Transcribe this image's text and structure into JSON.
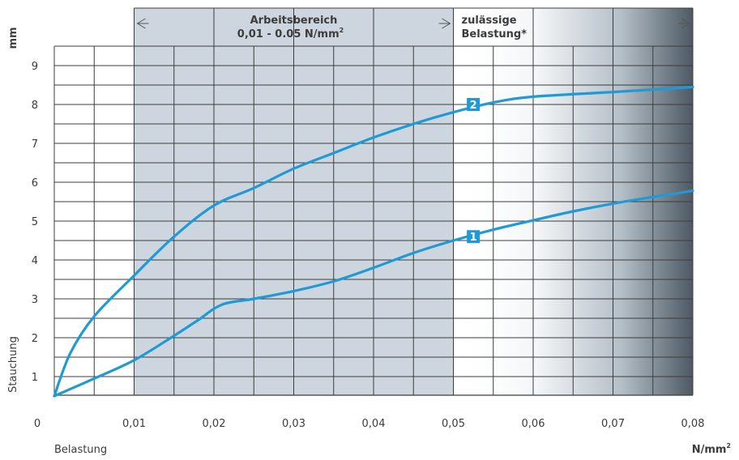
{
  "chart_data": {
    "type": "line",
    "y_unit": "mm",
    "ylabel": "Stauchung",
    "xlabel": "Belastung",
    "x_unit": "N/mm",
    "x_unit_sup": "2",
    "origin_label": "0",
    "xlim": [
      0.0,
      0.08
    ],
    "ylim": [
      0.5,
      9.5
    ],
    "x_ticks": [
      {
        "value": 0.01,
        "label": "0,01"
      },
      {
        "value": 0.02,
        "label": "0,02"
      },
      {
        "value": 0.03,
        "label": "0,03"
      },
      {
        "value": 0.04,
        "label": "0,04"
      },
      {
        "value": 0.05,
        "label": "0,05"
      },
      {
        "value": 0.06,
        "label": "0,06"
      },
      {
        "value": 0.07,
        "label": "0,07"
      },
      {
        "value": 0.08,
        "label": "0,08"
      }
    ],
    "y_ticks": [
      {
        "value": 1,
        "label": "1"
      },
      {
        "value": 2,
        "label": "2"
      },
      {
        "value": 3,
        "label": "3"
      },
      {
        "value": 4,
        "label": "4"
      },
      {
        "value": 5,
        "label": "5"
      },
      {
        "value": 6,
        "label": "6"
      },
      {
        "value": 7,
        "label": "7"
      },
      {
        "value": 8,
        "label": "8"
      },
      {
        "value": 9,
        "label": "9"
      }
    ],
    "grid": true,
    "regions": [
      {
        "from": 0.01,
        "to": 0.05,
        "line1": "Arbeitsbereich",
        "line2": "0,01 - 0.05 N/mm",
        "line2_sup": "2"
      },
      {
        "from": 0.05,
        "to": 0.08,
        "line1": "zulässige",
        "line2": "Belastung*"
      }
    ],
    "series": [
      {
        "name": "1",
        "marker_at": [
          0.0525,
          4.6
        ],
        "points": [
          [
            0.0,
            0.5
          ],
          [
            0.005,
            0.95
          ],
          [
            0.01,
            1.42
          ],
          [
            0.015,
            2.05
          ],
          [
            0.018,
            2.45
          ],
          [
            0.021,
            2.85
          ],
          [
            0.025,
            3.0
          ],
          [
            0.03,
            3.2
          ],
          [
            0.035,
            3.45
          ],
          [
            0.04,
            3.8
          ],
          [
            0.045,
            4.18
          ],
          [
            0.05,
            4.5
          ],
          [
            0.055,
            4.78
          ],
          [
            0.06,
            5.02
          ],
          [
            0.065,
            5.25
          ],
          [
            0.07,
            5.45
          ],
          [
            0.075,
            5.62
          ],
          [
            0.08,
            5.78
          ]
        ]
      },
      {
        "name": "2",
        "marker_at": [
          0.0525,
          8.0
        ],
        "points": [
          [
            0.0,
            0.5
          ],
          [
            0.002,
            1.6
          ],
          [
            0.005,
            2.55
          ],
          [
            0.01,
            3.6
          ],
          [
            0.015,
            4.6
          ],
          [
            0.02,
            5.4
          ],
          [
            0.025,
            5.85
          ],
          [
            0.03,
            6.35
          ],
          [
            0.035,
            6.75
          ],
          [
            0.04,
            7.15
          ],
          [
            0.045,
            7.5
          ],
          [
            0.05,
            7.8
          ],
          [
            0.055,
            8.05
          ],
          [
            0.06,
            8.2
          ],
          [
            0.07,
            8.32
          ],
          [
            0.08,
            8.45
          ]
        ]
      }
    ],
    "colors": {
      "line": "#1f9ad6",
      "marker_bg": "#1f9ad6",
      "work_area": "#cdd6de",
      "gradient_end": "#4e5a63",
      "grid": "#3c3c3c"
    }
  }
}
